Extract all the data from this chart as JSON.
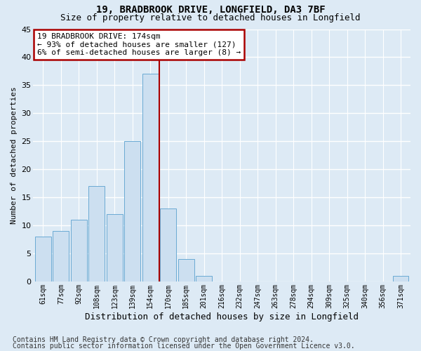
{
  "title1": "19, BRADBROOK DRIVE, LONGFIELD, DA3 7BF",
  "title2": "Size of property relative to detached houses in Longfield",
  "xlabel": "Distribution of detached houses by size in Longfield",
  "ylabel": "Number of detached properties",
  "categories": [
    "61sqm",
    "77sqm",
    "92sqm",
    "108sqm",
    "123sqm",
    "139sqm",
    "154sqm",
    "170sqm",
    "185sqm",
    "201sqm",
    "216sqm",
    "232sqm",
    "247sqm",
    "263sqm",
    "278sqm",
    "294sqm",
    "309sqm",
    "325sqm",
    "340sqm",
    "356sqm",
    "371sqm"
  ],
  "values": [
    8,
    9,
    11,
    17,
    12,
    25,
    37,
    13,
    4,
    1,
    0,
    0,
    0,
    0,
    0,
    0,
    0,
    0,
    0,
    0,
    1
  ],
  "bar_color": "#ccdff0",
  "bar_edge_color": "#6aaad4",
  "highlight_line_color": "#aa0000",
  "annotation_text": "19 BRADBROOK DRIVE: 174sqm\n← 93% of detached houses are smaller (127)\n6% of semi-detached houses are larger (8) →",
  "annotation_box_facecolor": "#ffffff",
  "annotation_box_edgecolor": "#aa0000",
  "ylim": [
    0,
    45
  ],
  "yticks": [
    0,
    5,
    10,
    15,
    20,
    25,
    30,
    35,
    40,
    45
  ],
  "footnote_line1": "Contains HM Land Registry data © Crown copyright and database right 2024.",
  "footnote_line2": "Contains public sector information licensed under the Open Government Licence v3.0.",
  "background_color": "#ddeaf5",
  "plot_bg_color": "#ddeaf5",
  "grid_color": "#ffffff",
  "title1_fontsize": 10,
  "title2_fontsize": 9,
  "ylabel_fontsize": 8,
  "xlabel_fontsize": 9,
  "tick_fontsize": 7,
  "annotation_fontsize": 8,
  "footnote_fontsize": 7,
  "line_x_index": 6.5
}
